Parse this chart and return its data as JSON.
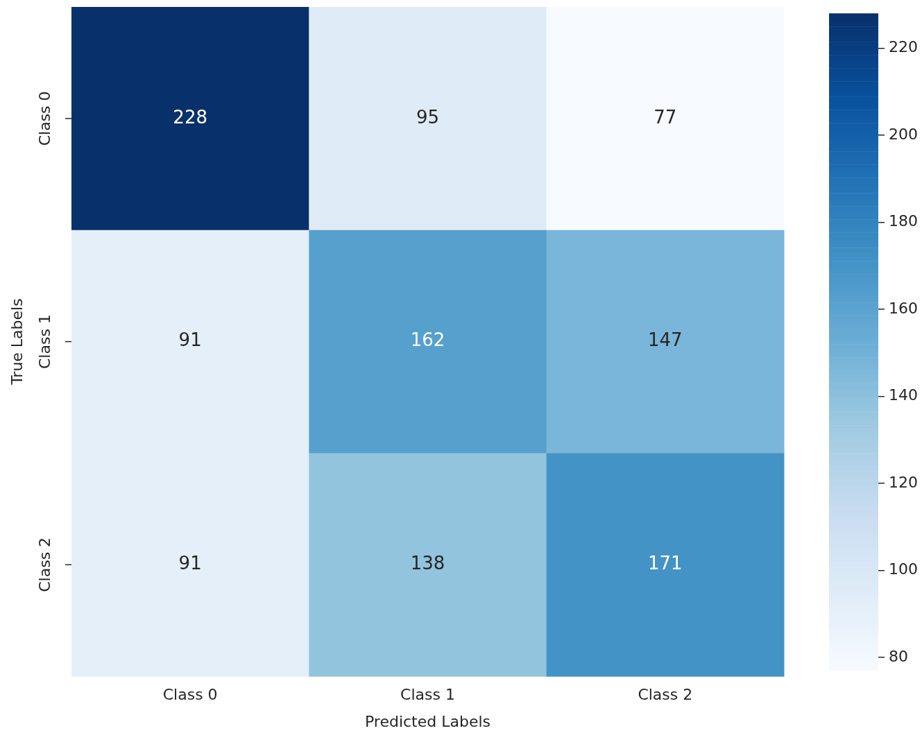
{
  "chart_data": {
    "type": "heatmap",
    "xlabel": "Predicted Labels",
    "ylabel": "True Labels",
    "categories": [
      "Class 0",
      "Class 1",
      "Class 2"
    ],
    "y_categories": [
      "Class 0",
      "Class 1",
      "Class 2"
    ],
    "cells": [
      [
        228,
        95,
        77
      ],
      [
        91,
        162,
        147
      ],
      [
        91,
        138,
        171
      ]
    ],
    "clim": [
      77,
      228
    ],
    "cticks": [
      80,
      100,
      120,
      140,
      160,
      180,
      200,
      220
    ],
    "data_labels": true
  }
}
